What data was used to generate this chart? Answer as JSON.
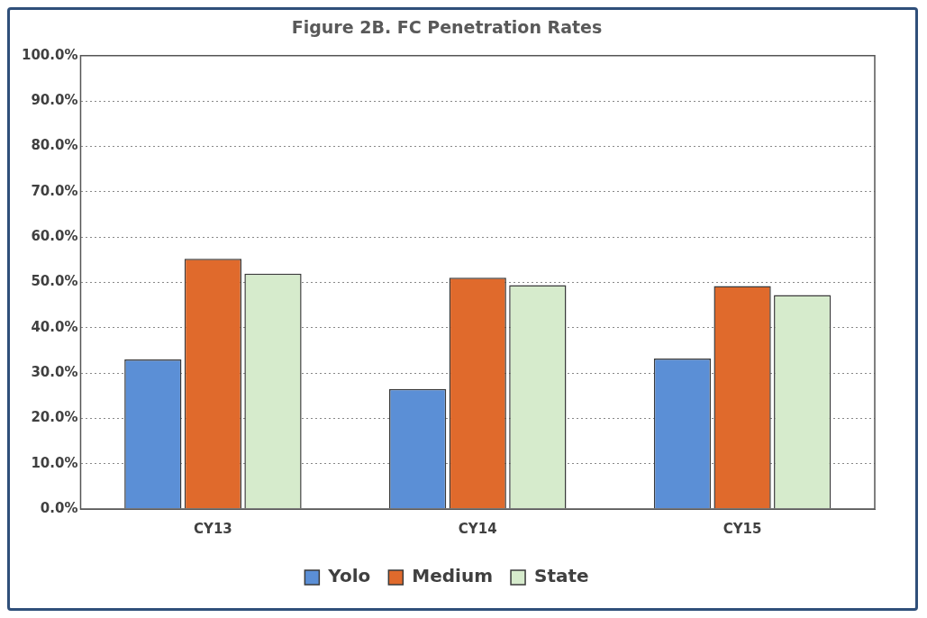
{
  "chart_data": {
    "type": "bar",
    "title": "Figure 2B. FC Penetration Rates",
    "categories": [
      "CY13",
      "CY14",
      "CY15"
    ],
    "series": [
      {
        "name": "Yolo",
        "color": "#5b8fd6",
        "values": [
          33.0,
          26.5,
          33.2
        ]
      },
      {
        "name": "Medium",
        "color": "#e06a2c",
        "values": [
          55.2,
          51.0,
          49.2
        ]
      },
      {
        "name": "State",
        "color": "#d6ebcc",
        "values": [
          51.9,
          49.4,
          47.2
        ]
      }
    ],
    "ylim": [
      0,
      100
    ],
    "yticks": [
      {
        "value": 0,
        "label": "0.0%"
      },
      {
        "value": 10,
        "label": "10.0%"
      },
      {
        "value": 20,
        "label": "20.0%"
      },
      {
        "value": 30,
        "label": "30.0%"
      },
      {
        "value": 40,
        "label": "40.0%"
      },
      {
        "value": 50,
        "label": "50.0%"
      },
      {
        "value": 60,
        "label": "60.0%"
      },
      {
        "value": 70,
        "label": "70.0%"
      },
      {
        "value": 80,
        "label": "80.0%"
      },
      {
        "value": 90,
        "label": "90.0%"
      },
      {
        "value": 100,
        "label": "100.0%"
      }
    ],
    "grid": "y",
    "legend": "bottom"
  }
}
